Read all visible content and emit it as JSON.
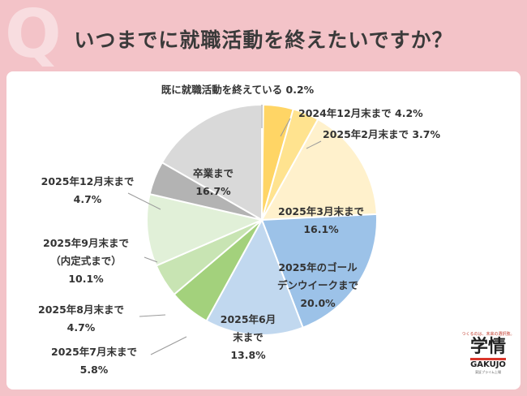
{
  "header": {
    "q_mark": "Q",
    "title": "いつまでに就職活動を終えたいですか？"
  },
  "logo": {
    "tagline": "つくるのは、未来の選択肢。",
    "mark": "学情",
    "name": "GAKUJO",
    "sub": "東証プライム上場"
  },
  "chart_data": {
    "type": "pie",
    "start": "12 o'clock, clockwise",
    "slices": [
      {
        "label": [
          "既に就職活動を終えている"
        ],
        "value": 0.2,
        "pct": "0.2%",
        "color": "#ffffff"
      },
      {
        "label": [
          "2024年12月末まで"
        ],
        "value": 4.2,
        "pct": "4.2%",
        "color": "#ffd565"
      },
      {
        "label": [
          "2025年2月末まで"
        ],
        "value": 3.7,
        "pct": "3.7%",
        "color": "#ffe38f"
      },
      {
        "label": [
          "2025年3月末まで"
        ],
        "value": 16.1,
        "pct": "16.1%",
        "color": "#fff1cc"
      },
      {
        "label": [
          "2025年のゴール",
          "デンウイークまで"
        ],
        "value": 20.0,
        "pct": "20.0%",
        "color": "#9cc2e8"
      },
      {
        "label": [
          "2025年6月",
          "末まで"
        ],
        "value": 13.8,
        "pct": "13.8%",
        "color": "#c1d8ef"
      },
      {
        "label": [
          "2025年7月末まで"
        ],
        "value": 5.8,
        "pct": "5.8%",
        "color": "#a3d17c"
      },
      {
        "label": [
          "2025年8月末まで"
        ],
        "value": 4.7,
        "pct": "4.7%",
        "color": "#c8e4b3"
      },
      {
        "label": [
          "2025年9月末まで",
          "（内定式まで）"
        ],
        "value": 10.1,
        "pct": "10.1%",
        "color": "#e1f0d8"
      },
      {
        "label": [
          "2025年12月末まで"
        ],
        "value": 4.7,
        "pct": "4.7%",
        "color": "#b3b3b3"
      },
      {
        "label": [
          "卒業まで"
        ],
        "value": 16.7,
        "pct": "16.7%",
        "color": "#d9d9d9"
      }
    ]
  }
}
